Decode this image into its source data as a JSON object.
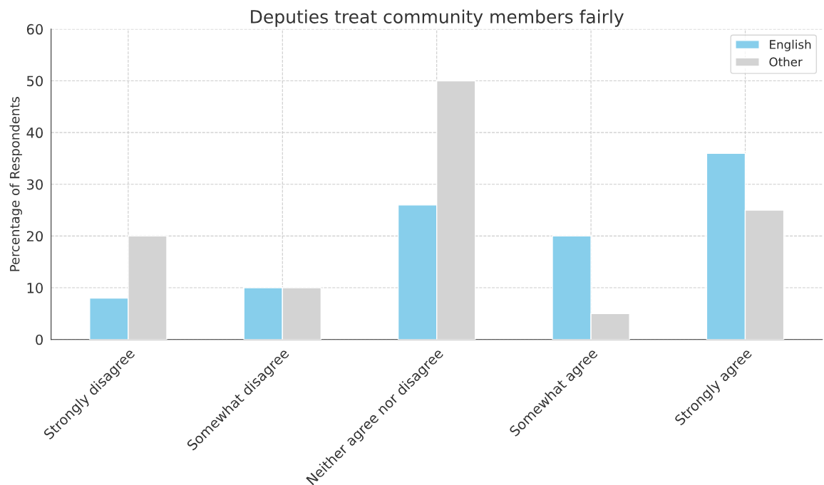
{
  "chart_data": {
    "type": "bar",
    "title": "Deputies treat community members fairly",
    "ylabel": "Percentage of Respondents",
    "categories": [
      "Strongly disagree",
      "Somewhat disagree",
      "Neither agree nor disagree",
      "Somewhat agree",
      "Strongly agree"
    ],
    "series": [
      {
        "name": "English",
        "color": "#87ceeb",
        "values": [
          8,
          10,
          26,
          20,
          36
        ]
      },
      {
        "name": "Other",
        "color": "#d3d3d3",
        "values": [
          20,
          10,
          50,
          5,
          25
        ]
      }
    ],
    "ylim": [
      0,
      60
    ],
    "yticks": [
      0,
      10,
      20,
      30,
      40,
      50,
      60
    ],
    "grid": true,
    "line_style": "dashed",
    "legend": "top right"
  }
}
